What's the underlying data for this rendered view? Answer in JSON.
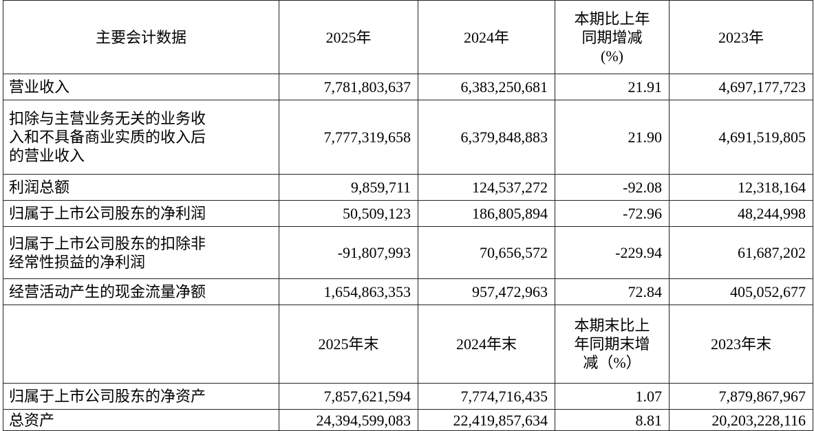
{
  "header": {
    "col0": "主要会计数据",
    "col1": "2025年",
    "col2": "2024年",
    "col3": [
      "本期比上年",
      "同期增减",
      "(%)"
    ],
    "col4": "2023年"
  },
  "rows": [
    {
      "label": [
        "营业收入"
      ],
      "v2025": "7,781,803,637",
      "v2024": "6,383,250,681",
      "change": "21.91",
      "v2023": "4,697,177,723"
    },
    {
      "label": [
        "扣除与主营业务无关的业务收",
        "入和不具备商业实质的收入后",
        "的营业收入"
      ],
      "v2025": "7,777,319,658",
      "v2024": "6,379,848,883",
      "change": "21.90",
      "v2023": "4,691,519,805"
    },
    {
      "label": [
        "利润总额"
      ],
      "v2025": "9,859,711",
      "v2024": "124,537,272",
      "change": "-92.08",
      "v2023": "12,318,164"
    },
    {
      "label": [
        "归属于上市公司股东的净利润"
      ],
      "v2025": "50,509,123",
      "v2024": "186,805,894",
      "change": "-72.96",
      "v2023": "48,244,998"
    },
    {
      "label": [
        "归属于上市公司股东的扣除非",
        "经常性损益的净利润"
      ],
      "v2025": "-91,807,993",
      "v2024": "70,656,572",
      "change": "-229.94",
      "v2023": "61,687,202"
    },
    {
      "label": [
        "经营活动产生的现金流量净额"
      ],
      "v2025": "1,654,863,353",
      "v2024": "957,472,963",
      "change": "72.84",
      "v2023": "405,052,677"
    }
  ],
  "header2": {
    "col0": "",
    "col1": "2025年末",
    "col2": "2024年末",
    "col3": [
      "本期末比上",
      "年同期末增",
      "减（%）"
    ],
    "col4": "2023年末"
  },
  "rows2": [
    {
      "label": [
        "归属于上市公司股东的净资产"
      ],
      "v2025": "7,857,621,594",
      "v2024": "7,774,716,435",
      "change": "1.07",
      "v2023": "7,879,867,967"
    },
    {
      "label": [
        "总资产"
      ],
      "v2025": "24,394,599,083",
      "v2024": "22,419,857,634",
      "change": "8.81",
      "v2023": "20,203,228,116"
    }
  ]
}
